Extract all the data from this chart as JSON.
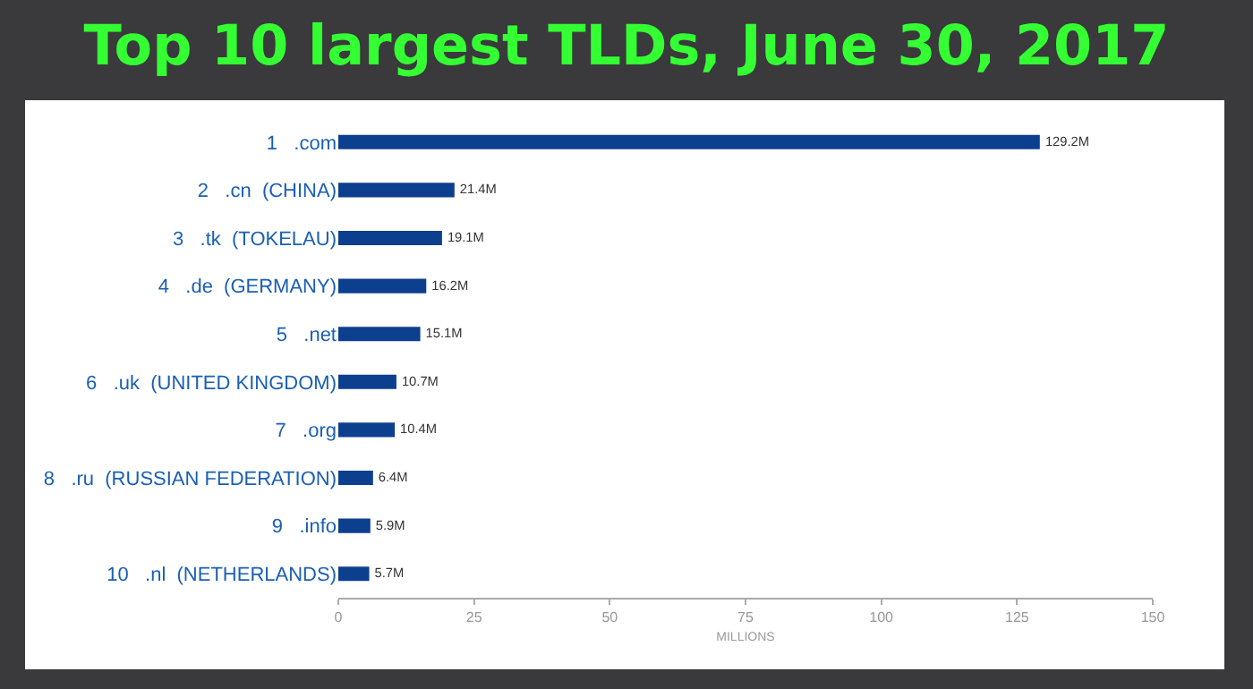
{
  "chart_data": {
    "type": "bar",
    "orientation": "horizontal",
    "title": "Top 10 largest TLDs, June 30, 2017",
    "categories": [
      "1   .com",
      "2   .cn  (CHINA)",
      "3   .tk  (TOKELAU)",
      "4   .de  (GERMANY)",
      "5   .net",
      "6   .uk  (UNITED KINGDOM)",
      "7   .org",
      "8   .ru  (RUSSIAN FEDERATION)",
      "9   .info",
      "10   .nl  (NETHERLANDS)"
    ],
    "values": [
      129.2,
      21.4,
      19.1,
      16.2,
      15.1,
      10.7,
      10.4,
      6.4,
      5.9,
      5.7
    ],
    "value_labels": [
      "129.2M",
      "21.4M",
      "19.1M",
      "16.2M",
      "15.1M",
      "10.7M",
      "10.4M",
      "6.4M",
      "5.9M",
      "5.7M"
    ],
    "color": "#0d3f8f",
    "xlabel": "MILLIONS",
    "xlim": [
      0,
      150
    ],
    "xticks": [
      0,
      25,
      50,
      75,
      100,
      125,
      150
    ],
    "grid": false
  }
}
